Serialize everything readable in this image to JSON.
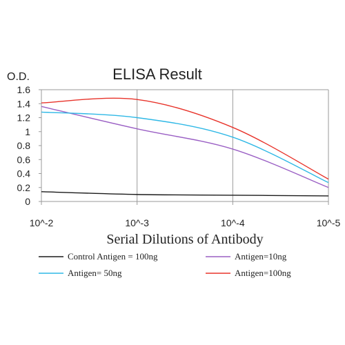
{
  "chart_data": {
    "type": "line",
    "title": "ELISA Result",
    "ylabel": "O.D.",
    "xlabel": "Serial Dilutions of Antibody",
    "x_scale": "log",
    "x": [
      0.01,
      0.001,
      0.0001,
      1e-05
    ],
    "x_tick_labels": [
      "10^-2",
      "10^-3",
      "10^-4",
      "10^-5"
    ],
    "ylim": [
      0,
      1.6
    ],
    "y_ticks": [
      0,
      0.2,
      0.4,
      0.6,
      0.8,
      1,
      1.2,
      1.4,
      1.6
    ],
    "y_tick_labels": [
      "0",
      "0.2",
      "0.4",
      "0.6",
      "0.8",
      "1",
      "1.2",
      "1.4",
      "1.6"
    ],
    "grid": true,
    "legend_position": "bottom",
    "series": [
      {
        "name": "Control Antigen = 100ng",
        "color": "#1a1a1a",
        "values": [
          0.14,
          0.1,
          0.09,
          0.08
        ]
      },
      {
        "name": "Antigen=10ng",
        "color": "#9a5fc4",
        "values": [
          1.36,
          1.04,
          0.75,
          0.2
        ]
      },
      {
        "name": "Antigen= 50ng",
        "color": "#2eb8e6",
        "values": [
          1.28,
          1.2,
          0.92,
          0.27
        ]
      },
      {
        "name": "Antigen=100ng",
        "color": "#e8332a",
        "values": [
          1.41,
          1.46,
          1.06,
          0.32
        ]
      }
    ]
  }
}
